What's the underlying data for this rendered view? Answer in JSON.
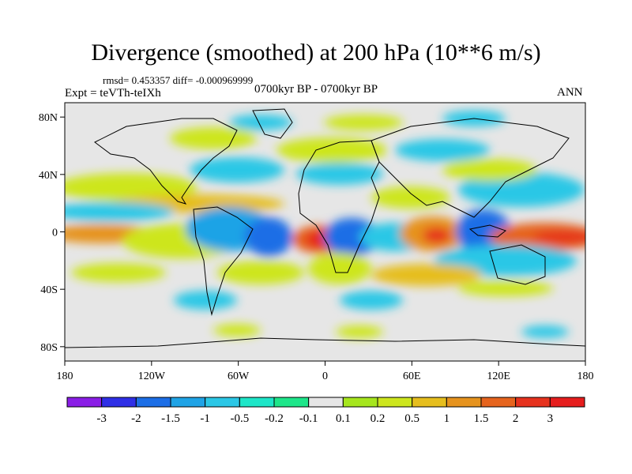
{
  "title": "Divergence (smoothed) at 200 hPa (10**6 m/s)",
  "stats": "rmsd= 0.453357 diff= -0.000969999",
  "experiment": "Expt = teVTh-teIXh",
  "period": "0700kyr BP - 0700kyr BP",
  "season": "ANN",
  "map": {
    "projection": "cylindrical equidistant",
    "x_ticks": [
      "180",
      "120W",
      "60W",
      "0",
      "60E",
      "120E",
      "180"
    ],
    "y_ticks": [
      "80N",
      "40N",
      "0",
      "40S",
      "80S"
    ],
    "background_color": "#e6e6e6"
  },
  "colorbar": {
    "labels": [
      "-3",
      "-2",
      "-1.5",
      "-1",
      "-0.5",
      "-0.2",
      "-0.1",
      "0.1",
      "0.2",
      "0.5",
      "1",
      "1.5",
      "2",
      "3"
    ],
    "colors": [
      "#8a1ee6",
      "#2f2fe6",
      "#1c6ee6",
      "#1fa3e6",
      "#2bc7e6",
      "#1ee6c8",
      "#1ee68a",
      "#e6e6e6",
      "#a6e61e",
      "#cde61e",
      "#e6be1e",
      "#e6931e",
      "#e6641e",
      "#e6321e",
      "#e61e1e"
    ]
  }
}
